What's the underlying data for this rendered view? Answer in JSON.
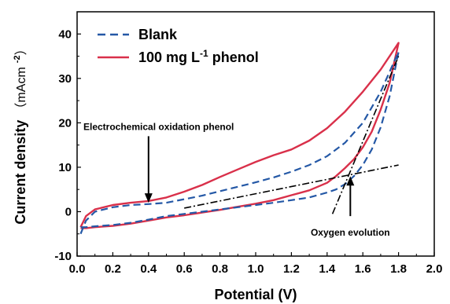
{
  "chart_data": {
    "type": "line",
    "xlabel": "Potential (V)",
    "ylabel": "Current density",
    "ylabel_unit": "（mAcm-2）",
    "xlim": [
      0.0,
      2.0
    ],
    "ylim": [
      -10,
      45
    ],
    "xticks": [
      "0.0",
      "0.2",
      "0.4",
      "0.6",
      "0.8",
      "1.0",
      "1.2",
      "1.4",
      "1.6",
      "1.8",
      "2.0"
    ],
    "yticks": [
      "-10",
      "0",
      "10",
      "20",
      "30",
      "40"
    ],
    "grid": false,
    "legend_position": "top-left",
    "series": [
      {
        "name": "Blank",
        "style": "dashed",
        "color": "#2458a6",
        "forward": {
          "x": [
            0.02,
            0.05,
            0.1,
            0.2,
            0.3,
            0.4,
            0.5,
            0.6,
            0.7,
            0.8,
            0.9,
            1.0,
            1.1,
            1.2,
            1.3,
            1.4,
            1.5,
            1.6,
            1.7,
            1.8
          ],
          "y": [
            -5.0,
            -2.0,
            0.0,
            1.0,
            1.5,
            1.7,
            2.0,
            2.8,
            3.6,
            4.6,
            5.6,
            6.6,
            7.7,
            9.0,
            10.5,
            12.5,
            15.5,
            20.0,
            27.0,
            36.0
          ]
        },
        "reverse": {
          "x": [
            1.8,
            1.75,
            1.7,
            1.65,
            1.6,
            1.55,
            1.5,
            1.45,
            1.4,
            1.3,
            1.2,
            1.1,
            1.0,
            0.9,
            0.8,
            0.7,
            0.6,
            0.5,
            0.4,
            0.3,
            0.2,
            0.1,
            0.05,
            0.02
          ],
          "y": [
            36.0,
            26.0,
            19.0,
            14.0,
            10.5,
            8.0,
            6.2,
            5.0,
            4.3,
            3.2,
            2.6,
            2.0,
            1.5,
            1.0,
            0.5,
            0.0,
            -0.5,
            -1.0,
            -1.8,
            -2.5,
            -3.0,
            -3.3,
            -3.5,
            -3.5
          ]
        }
      },
      {
        "name": "100 mg L-1 phenol",
        "style": "solid",
        "color": "#d9304a",
        "forward": {
          "x": [
            0.02,
            0.05,
            0.1,
            0.2,
            0.3,
            0.4,
            0.5,
            0.6,
            0.7,
            0.8,
            0.9,
            1.0,
            1.1,
            1.2,
            1.3,
            1.4,
            1.5,
            1.6,
            1.7,
            1.8
          ],
          "y": [
            -3.5,
            -1.0,
            0.5,
            1.5,
            2.0,
            2.4,
            3.2,
            4.5,
            6.0,
            7.8,
            9.5,
            11.2,
            12.7,
            14.0,
            16.0,
            18.8,
            22.5,
            27.0,
            32.0,
            38.0
          ]
        },
        "reverse": {
          "x": [
            1.8,
            1.75,
            1.7,
            1.65,
            1.6,
            1.55,
            1.5,
            1.45,
            1.4,
            1.3,
            1.2,
            1.1,
            1.0,
            0.9,
            0.8,
            0.7,
            0.6,
            0.5,
            0.4,
            0.3,
            0.2,
            0.1,
            0.05,
            0.02
          ],
          "y": [
            38.0,
            29.0,
            23.0,
            18.0,
            14.5,
            11.8,
            9.8,
            8.0,
            6.5,
            4.8,
            3.7,
            2.6,
            1.8,
            1.1,
            0.4,
            -0.2,
            -0.8,
            -1.3,
            -2.0,
            -2.7,
            -3.2,
            -3.5,
            -3.7,
            -3.7
          ]
        }
      }
    ],
    "reference_lines": [
      {
        "style": "dashdot",
        "color": "#000000",
        "x": [
          0.6,
          1.8
        ],
        "y": [
          0.8,
          10.5
        ]
      },
      {
        "style": "dashdot",
        "color": "#000000",
        "x": [
          1.43,
          1.8
        ],
        "y": [
          -0.5,
          35.0
        ]
      }
    ],
    "annotations": [
      {
        "text": "Electrochemical oxidation phenol",
        "arrow_from": [
          0.4,
          17.0
        ],
        "arrow_to": [
          0.4,
          2.0
        ],
        "direction": "down"
      },
      {
        "text": "Oxygen evolution",
        "arrow_from": [
          1.53,
          -1.0
        ],
        "arrow_to": [
          1.53,
          8.0
        ],
        "direction": "up"
      }
    ]
  }
}
